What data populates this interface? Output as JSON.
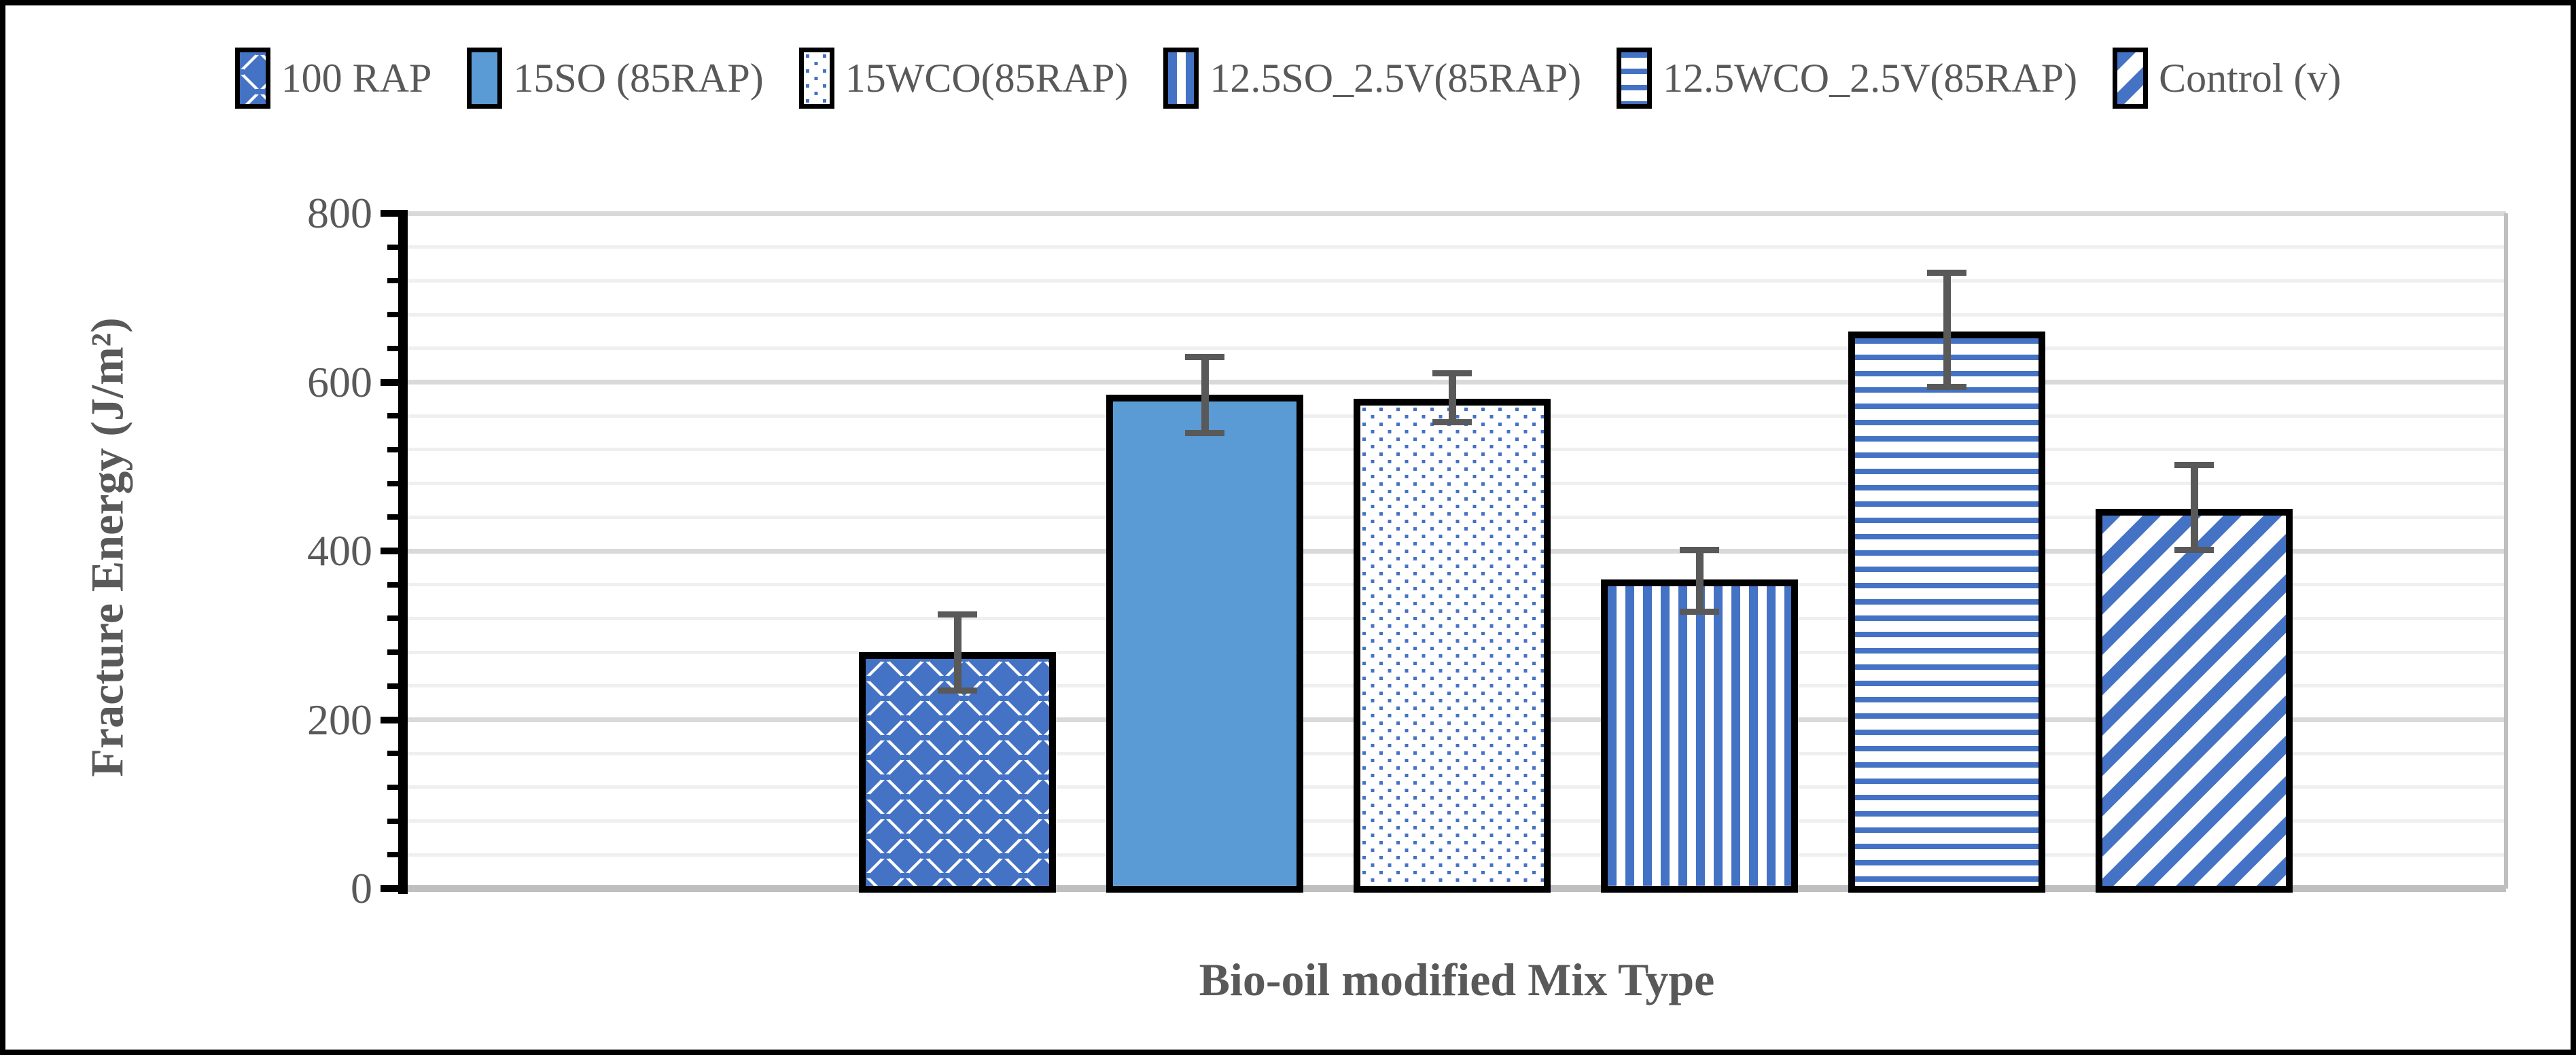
{
  "figure": {
    "background": "#ffffff",
    "border_color": "#000000"
  },
  "chart_data": {
    "type": "bar",
    "title": "",
    "xlabel": "Bio-oil modified Mix Type",
    "ylabel": "Fracture Energy (J/m²)",
    "ylim": [
      0,
      800
    ],
    "ytick_interval": 200,
    "yminor_interval": 40,
    "ytick_labels": [
      "0",
      "200",
      "400",
      "600",
      "800"
    ],
    "grid": true,
    "legend_position": "top",
    "categories": [
      "100 RAP",
      "15SO (85RAP)",
      "15WCO(85RAP)",
      "12.5SO_2.5V(85RAP)",
      "12.5WCO_2.5V(85RAP)",
      "Control (v)"
    ],
    "values": [
      280,
      585,
      580,
      366,
      660,
      450
    ],
    "error_low": [
      235,
      540,
      553,
      328,
      595,
      402
    ],
    "error_high": [
      325,
      630,
      611,
      402,
      730,
      502
    ],
    "patterns": [
      "diamond",
      "solid",
      "dots",
      "vertical-stripes",
      "horizontal-stripes",
      "diagonal-stripes"
    ],
    "colors": {
      "solid_fill": "#5B9BD5",
      "pattern_blue": "#4472C4",
      "bar_outline": "#000000",
      "error_bar": "#595959",
      "axis_text": "#595959",
      "axis_line": "#000000",
      "grid_major": "#D9D9D9",
      "grid_minor": "#EFEFEF",
      "baseline": "#BFBFBF"
    }
  }
}
